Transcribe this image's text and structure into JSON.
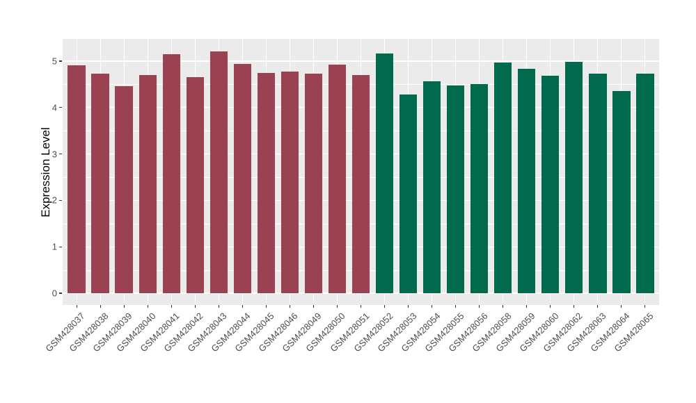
{
  "chart_data": {
    "type": "bar",
    "title": "",
    "xlabel": "",
    "ylabel": "Expression Level",
    "ylim": [
      0,
      5.48
    ],
    "yticks": [
      0,
      1,
      2,
      3,
      4,
      5
    ],
    "grid": "on",
    "legend_position": "none",
    "panel_bg": "#EBEBEB",
    "grid_color": "#FFFFFF",
    "axis_text_color": "#4D4D4D",
    "group_colors": {
      "group1": "#9A4152",
      "group2": "#016A4C"
    },
    "categories": [
      "GSM428037",
      "GSM428038",
      "GSM428039",
      "GSM428040",
      "GSM428041",
      "GSM428042",
      "GSM428043",
      "GSM428044",
      "GSM428045",
      "GSM428046",
      "GSM428049",
      "GSM428050",
      "GSM428051",
      "GSM428052",
      "GSM428053",
      "GSM428054",
      "GSM428055",
      "GSM428056",
      "GSM428058",
      "GSM428059",
      "GSM428060",
      "GSM428062",
      "GSM428063",
      "GSM428064",
      "GSM428065"
    ],
    "values": [
      4.91,
      4.73,
      4.46,
      4.7,
      5.15,
      4.66,
      5.21,
      4.94,
      4.74,
      4.78,
      4.73,
      4.93,
      4.7,
      5.17,
      4.28,
      4.56,
      4.47,
      4.5,
      4.97,
      4.83,
      4.68,
      4.99,
      4.73,
      4.35,
      4.73
    ],
    "bar_colors": [
      "#9A4152",
      "#9A4152",
      "#9A4152",
      "#9A4152",
      "#9A4152",
      "#9A4152",
      "#9A4152",
      "#9A4152",
      "#9A4152",
      "#9A4152",
      "#9A4152",
      "#9A4152",
      "#9A4152",
      "#016A4C",
      "#016A4C",
      "#016A4C",
      "#016A4C",
      "#016A4C",
      "#016A4C",
      "#016A4C",
      "#016A4C",
      "#016A4C",
      "#016A4C",
      "#016A4C",
      "#016A4C"
    ]
  }
}
